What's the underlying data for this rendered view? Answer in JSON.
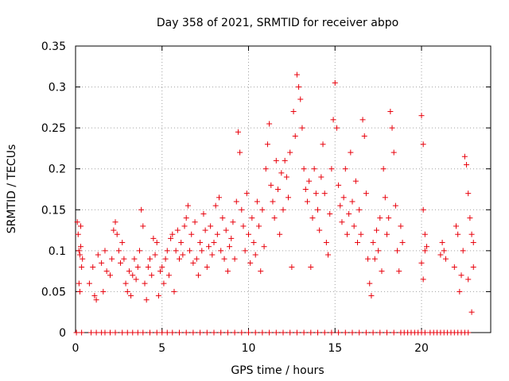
{
  "chart_data": {
    "type": "scatter",
    "title": "Day 358 of 2021, SRMTID for receiver abpo",
    "xlabel": "GPS time / hours",
    "ylabel": "SRMTID / TECUs",
    "xlim": [
      0,
      24
    ],
    "ylim": [
      0,
      0.35
    ],
    "xticks": [
      0,
      5,
      10,
      15,
      20
    ],
    "yticks": [
      0,
      0.05,
      0.1,
      0.15,
      0.2,
      0.25,
      0.3,
      0.35
    ],
    "ytick_labels": [
      "0",
      "0.05",
      "0.1",
      "0.15",
      "0.2",
      "0.25",
      "0.3",
      "0.35"
    ],
    "grid": true,
    "marker": "+",
    "color": "#e8000b",
    "series": [
      {
        "name": "SRMTID",
        "points": [
          [
            0.1,
            0.135
          ],
          [
            0.15,
            0.12
          ],
          [
            0.2,
            0.1
          ],
          [
            0.25,
            0.095
          ],
          [
            0.3,
            0.105
          ],
          [
            0.35,
            0.08
          ],
          [
            0.2,
            0.06
          ],
          [
            0.25,
            0.05
          ],
          [
            0.3,
            0.13
          ],
          [
            0.4,
            0.09
          ],
          [
            0.8,
            0.06
          ],
          [
            1.0,
            0.08
          ],
          [
            1.1,
            0.045
          ],
          [
            1.2,
            0.04
          ],
          [
            1.3,
            0.095
          ],
          [
            1.5,
            0.085
          ],
          [
            1.6,
            0.05
          ],
          [
            1.7,
            0.1
          ],
          [
            1.8,
            0.075
          ],
          [
            2.0,
            0.07
          ],
          [
            2.1,
            0.09
          ],
          [
            2.2,
            0.125
          ],
          [
            2.3,
            0.135
          ],
          [
            2.4,
            0.12
          ],
          [
            2.5,
            0.1
          ],
          [
            2.6,
            0.085
          ],
          [
            2.7,
            0.11
          ],
          [
            2.8,
            0.09
          ],
          [
            2.9,
            0.06
          ],
          [
            3.0,
            0.05
          ],
          [
            3.1,
            0.075
          ],
          [
            3.2,
            0.045
          ],
          [
            3.3,
            0.07
          ],
          [
            3.4,
            0.09
          ],
          [
            3.5,
            0.065
          ],
          [
            3.6,
            0.08
          ],
          [
            3.7,
            0.1
          ],
          [
            3.8,
            0.15
          ],
          [
            3.9,
            0.13
          ],
          [
            4.0,
            0.06
          ],
          [
            4.1,
            0.04
          ],
          [
            4.2,
            0.08
          ],
          [
            4.3,
            0.09
          ],
          [
            4.4,
            0.07
          ],
          [
            4.5,
            0.115
          ],
          [
            4.6,
            0.095
          ],
          [
            4.7,
            0.11
          ],
          [
            4.8,
            0.045
          ],
          [
            4.9,
            0.075
          ],
          [
            5.0,
            0.08
          ],
          [
            5.1,
            0.06
          ],
          [
            5.2,
            0.09
          ],
          [
            5.3,
            0.1
          ],
          [
            5.4,
            0.07
          ],
          [
            5.5,
            0.115
          ],
          [
            5.6,
            0.12
          ],
          [
            5.7,
            0.05
          ],
          [
            5.8,
            0.1
          ],
          [
            5.9,
            0.125
          ],
          [
            6.0,
            0.09
          ],
          [
            6.1,
            0.11
          ],
          [
            6.2,
            0.095
          ],
          [
            6.3,
            0.13
          ],
          [
            6.4,
            0.14
          ],
          [
            6.5,
            0.155
          ],
          [
            6.6,
            0.1
          ],
          [
            6.7,
            0.12
          ],
          [
            6.8,
            0.085
          ],
          [
            6.9,
            0.135
          ],
          [
            7.0,
            0.09
          ],
          [
            7.1,
            0.07
          ],
          [
            7.2,
            0.11
          ],
          [
            7.3,
            0.1
          ],
          [
            7.4,
            0.145
          ],
          [
            7.5,
            0.125
          ],
          [
            7.6,
            0.08
          ],
          [
            7.7,
            0.105
          ],
          [
            7.8,
            0.13
          ],
          [
            7.9,
            0.095
          ],
          [
            8.0,
            0.11
          ],
          [
            8.1,
            0.155
          ],
          [
            8.2,
            0.12
          ],
          [
            8.3,
            0.165
          ],
          [
            8.4,
            0.1
          ],
          [
            8.5,
            0.14
          ],
          [
            8.6,
            0.09
          ],
          [
            8.7,
            0.125
          ],
          [
            8.8,
            0.075
          ],
          [
            8.9,
            0.105
          ],
          [
            9.0,
            0.115
          ],
          [
            9.1,
            0.135
          ],
          [
            9.2,
            0.09
          ],
          [
            9.3,
            0.16
          ],
          [
            9.4,
            0.245
          ],
          [
            9.5,
            0.22
          ],
          [
            9.6,
            0.15
          ],
          [
            9.7,
            0.13
          ],
          [
            9.8,
            0.1
          ],
          [
            9.9,
            0.17
          ],
          [
            10.0,
            0.12
          ],
          [
            10.1,
            0.085
          ],
          [
            10.2,
            0.14
          ],
          [
            10.3,
            0.11
          ],
          [
            10.4,
            0.095
          ],
          [
            10.5,
            0.16
          ],
          [
            10.6,
            0.13
          ],
          [
            10.7,
            0.075
          ],
          [
            10.8,
            0.15
          ],
          [
            10.9,
            0.105
          ],
          [
            11.0,
            0.2
          ],
          [
            11.1,
            0.23
          ],
          [
            11.2,
            0.255
          ],
          [
            11.3,
            0.18
          ],
          [
            11.4,
            0.16
          ],
          [
            11.5,
            0.14
          ],
          [
            11.6,
            0.21
          ],
          [
            11.7,
            0.175
          ],
          [
            11.8,
            0.12
          ],
          [
            11.9,
            0.195
          ],
          [
            12.0,
            0.15
          ],
          [
            12.1,
            0.21
          ],
          [
            12.2,
            0.19
          ],
          [
            12.3,
            0.165
          ],
          [
            12.4,
            0.22
          ],
          [
            12.5,
            0.08
          ],
          [
            12.6,
            0.27
          ],
          [
            12.7,
            0.24
          ],
          [
            12.8,
            0.315
          ],
          [
            12.9,
            0.3
          ],
          [
            13.0,
            0.285
          ],
          [
            13.1,
            0.25
          ],
          [
            13.2,
            0.2
          ],
          [
            13.3,
            0.175
          ],
          [
            13.4,
            0.16
          ],
          [
            13.5,
            0.185
          ],
          [
            13.6,
            0.08
          ],
          [
            13.7,
            0.14
          ],
          [
            13.8,
            0.2
          ],
          [
            13.9,
            0.17
          ],
          [
            14.0,
            0.15
          ],
          [
            14.1,
            0.125
          ],
          [
            14.2,
            0.19
          ],
          [
            14.3,
            0.23
          ],
          [
            14.4,
            0.17
          ],
          [
            14.5,
            0.11
          ],
          [
            14.6,
            0.095
          ],
          [
            14.7,
            0.145
          ],
          [
            14.8,
            0.2
          ],
          [
            14.9,
            0.26
          ],
          [
            15.0,
            0.305
          ],
          [
            15.1,
            0.25
          ],
          [
            15.2,
            0.18
          ],
          [
            15.3,
            0.155
          ],
          [
            15.4,
            0.135
          ],
          [
            15.5,
            0.165
          ],
          [
            15.6,
            0.2
          ],
          [
            15.7,
            0.12
          ],
          [
            15.8,
            0.145
          ],
          [
            15.9,
            0.22
          ],
          [
            16.0,
            0.16
          ],
          [
            16.1,
            0.13
          ],
          [
            16.2,
            0.185
          ],
          [
            16.3,
            0.11
          ],
          [
            16.4,
            0.15
          ],
          [
            16.5,
            0.12
          ],
          [
            16.6,
            0.26
          ],
          [
            16.7,
            0.24
          ],
          [
            16.8,
            0.17
          ],
          [
            16.9,
            0.09
          ],
          [
            17.0,
            0.06
          ],
          [
            17.1,
            0.045
          ],
          [
            17.2,
            0.11
          ],
          [
            17.3,
            0.09
          ],
          [
            17.4,
            0.125
          ],
          [
            17.5,
            0.1
          ],
          [
            17.6,
            0.14
          ],
          [
            17.7,
            0.075
          ],
          [
            17.8,
            0.2
          ],
          [
            17.9,
            0.165
          ],
          [
            18.0,
            0.12
          ],
          [
            18.1,
            0.14
          ],
          [
            18.2,
            0.27
          ],
          [
            18.3,
            0.25
          ],
          [
            18.4,
            0.22
          ],
          [
            18.5,
            0.155
          ],
          [
            18.6,
            0.1
          ],
          [
            18.7,
            0.075
          ],
          [
            18.8,
            0.13
          ],
          [
            18.9,
            0.11
          ],
          [
            20.0,
            0.265
          ],
          [
            20.1,
            0.23
          ],
          [
            20.1,
            0.15
          ],
          [
            20.2,
            0.12
          ],
          [
            20.2,
            0.1
          ],
          [
            20.3,
            0.105
          ],
          [
            20.0,
            0.085
          ],
          [
            20.1,
            0.065
          ],
          [
            21.1,
            0.095
          ],
          [
            21.2,
            0.11
          ],
          [
            21.3,
            0.1
          ],
          [
            21.4,
            0.09
          ],
          [
            21.9,
            0.08
          ],
          [
            22.0,
            0.13
          ],
          [
            22.1,
            0.12
          ],
          [
            22.2,
            0.05
          ],
          [
            22.3,
            0.07
          ],
          [
            22.4,
            0.1
          ],
          [
            22.5,
            0.215
          ],
          [
            22.6,
            0.205
          ],
          [
            22.7,
            0.17
          ],
          [
            22.8,
            0.14
          ],
          [
            22.9,
            0.12
          ],
          [
            23.0,
            0.11
          ],
          [
            23.0,
            0.08
          ],
          [
            22.9,
            0.025
          ],
          [
            22.7,
            0.065
          ]
        ],
        "zero_points": [
          0.05,
          0.35,
          0.9,
          1.2,
          1.5,
          1.7,
          2.0,
          2.3,
          2.7,
          3.0,
          3.3,
          3.6,
          3.9,
          4.3,
          4.7,
          5.0,
          5.3,
          5.6,
          6.0,
          6.4,
          6.8,
          7.2,
          7.6,
          8.0,
          8.4,
          8.8,
          9.2,
          9.6,
          10.0,
          10.4,
          10.8,
          11.2,
          11.6,
          12.0,
          12.4,
          12.8,
          13.2,
          13.6,
          14.0,
          14.4,
          14.8,
          15.2,
          15.6,
          16.0,
          16.4,
          16.8,
          17.2,
          17.6,
          18.0,
          18.4,
          18.8,
          19.0,
          19.2,
          19.4,
          19.6,
          19.8,
          20.0,
          20.2,
          20.5,
          20.7,
          20.9,
          21.1,
          21.3,
          21.5,
          21.7,
          21.9,
          22.1,
          22.3,
          22.5,
          22.7
        ]
      }
    ]
  }
}
